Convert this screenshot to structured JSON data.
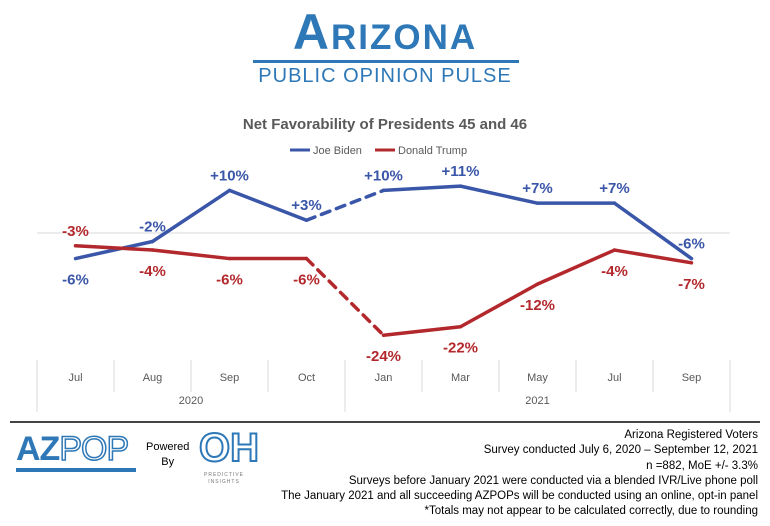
{
  "header": {
    "brand": "Arizona",
    "subtitle": "PUBLIC OPINION PULSE"
  },
  "chart_data": {
    "type": "line",
    "title": "Net Favorability of Presidents 45 and 46",
    "categories": [
      "Jul",
      "Aug",
      "Sep",
      "Oct",
      "Jan",
      "Mar",
      "May",
      "Jul",
      "Sep"
    ],
    "groups": [
      {
        "label": "2020",
        "span": 4
      },
      {
        "label": "2021",
        "span": 5
      }
    ],
    "series": [
      {
        "name": "Joe Biden",
        "color": "#3a56a8",
        "values": [
          -6,
          -2,
          10,
          3,
          10,
          11,
          7,
          7,
          -6
        ],
        "labels": [
          "-6%",
          "-2%",
          "+10%",
          "+3%",
          "+10%",
          "+11%",
          "+7%",
          "+7%",
          "-6%"
        ]
      },
      {
        "name": "Donald Trump",
        "color": "#b3282d",
        "values": [
          -3,
          -4,
          -6,
          -6,
          -24,
          -22,
          -12,
          -4,
          -7
        ],
        "labels": [
          "-3%",
          "-4%",
          "-6%",
          "-6%",
          "-24%",
          "-22%",
          "-12%",
          "-4%",
          "-7%"
        ]
      }
    ],
    "dashed_segment": [
      "Oct",
      "Jan"
    ],
    "legend": "top",
    "ylim": [
      -26,
      13
    ]
  },
  "footer": {
    "logo": "AZPOP",
    "powered": "Powered",
    "by": "By",
    "partner_logo": "OH",
    "partner_name": "PREDICTIVE INSIGHTS",
    "notes": [
      "Arizona Registered Voters",
      "Survey conducted July 6, 2020 – September 12, 2021",
      "n =882, MoE +/- 3.3%",
      "Surveys before January 2021 were conducted via a blended IVR/Live phone poll",
      "The January 2021 and all succeeding AZPOPs will be conducted using an online, opt-in panel",
      "*Totals may not appear to be calculated correctly, due to rounding"
    ]
  }
}
